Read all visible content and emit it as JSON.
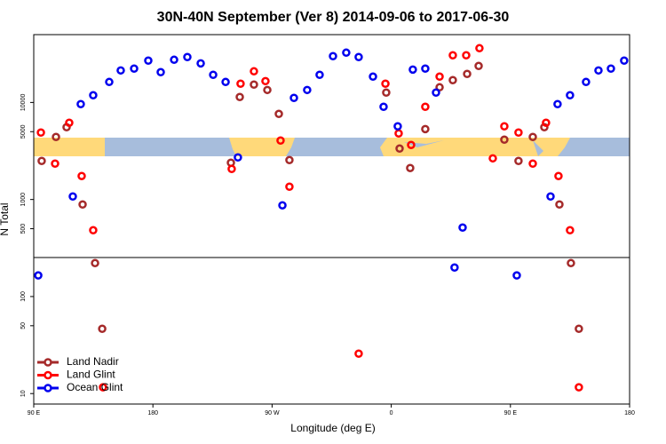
{
  "chart_data": {
    "type": "scatter",
    "title": "30N-40N September (Ver 8)   2014-09-06 to 2017-06-30",
    "x_label": "Longitude (deg E)",
    "y_label": "N Total",
    "xlim": [
      90,
      540
    ],
    "xticks": [
      {
        "value": 90,
        "label": "90 E"
      },
      {
        "value": 180,
        "label": "180"
      },
      {
        "value": 270,
        "label": "90 W"
      },
      {
        "value": 360,
        "label": "0"
      },
      {
        "value": 450,
        "label": "90 E"
      },
      {
        "value": 540,
        "label": "180"
      }
    ],
    "ylim": [
      7.8,
      50000
    ],
    "y_scale": "log",
    "yticks": [
      10,
      50,
      100,
      500,
      1000,
      5000,
      10000
    ],
    "legend": "bottomleft",
    "series": [
      {
        "name": "Land Nadir",
        "color": "#a52a2a",
        "x": [
          96.0,
          106.8,
          114.8,
          126.9,
          136.3,
          141.7,
          238.9,
          245.6,
          256.3,
          266.4,
          275.1,
          283.1,
          356.2,
          366.3,
          374.3,
          385.7,
          396.5,
          406.5,
          417.3,
          426.0,
          445.4,
          456.1,
          466.9,
          475.6,
          487.0,
          495.7,
          501.7
        ],
        "values": [
          2495,
          4406,
          5560,
          889,
          221,
          46.5,
          2393,
          11380,
          15280,
          13450,
          7620,
          2547,
          12650,
          3350,
          2110,
          5320,
          14330,
          16980,
          19680,
          23770,
          4140,
          2495,
          4406,
          5560,
          889,
          221,
          46.5
        ]
      },
      {
        "name": "Land Glint",
        "color": "#ff0000",
        "x": [
          95.4,
          106.1,
          116.8,
          126.2,
          134.9,
          142.3,
          239.5,
          246.2,
          256.3,
          265.0,
          276.4,
          283.1,
          335.4,
          355.6,
          365.6,
          375.0,
          385.7,
          396.5,
          406.5,
          416.6,
          426.6,
          436.7,
          445.4,
          456.1,
          466.9,
          476.9,
          486.3,
          495.0,
          501.7
        ],
        "values": [
          4898,
          2344,
          6180,
          1746,
          482,
          11.6,
          2065,
          15600,
          20940,
          16600,
          4050,
          1355,
          25.8,
          15600,
          4797,
          3650,
          9020,
          18460,
          30620,
          30620,
          36220,
          2655,
          5680,
          4898,
          2344,
          6180,
          1746,
          482,
          11.6
        ]
      },
      {
        "name": "Ocean Glint",
        "color": "#0000ee",
        "x": [
          93.4,
          119.5,
          125.5,
          134.9,
          147.0,
          155.7,
          165.8,
          176.5,
          185.9,
          196.0,
          206.0,
          216.1,
          225.5,
          234.9,
          244.2,
          277.8,
          286.5,
          296.5,
          305.9,
          316.0,
          326.0,
          335.4,
          346.2,
          354.2,
          364.9,
          376.3,
          385.7,
          393.8,
          407.8,
          413.9,
          454.8,
          480.3,
          485.6,
          495.0,
          507.1,
          516.5,
          525.9,
          535.9
        ],
        "values": [
          165,
          1074,
          9610,
          11860,
          16260,
          21380,
          22330,
          26980,
          20510,
          27540,
          29380,
          25290,
          19280,
          16260,
          2716,
          871,
          11140,
          13450,
          19280,
          29990,
          32600,
          29380,
          18460,
          9020,
          5680,
          21830,
          22330,
          12650,
          199,
          514,
          165,
          1074,
          9610,
          11860,
          16260,
          21380,
          22330,
          26980
        ]
      }
    ]
  }
}
